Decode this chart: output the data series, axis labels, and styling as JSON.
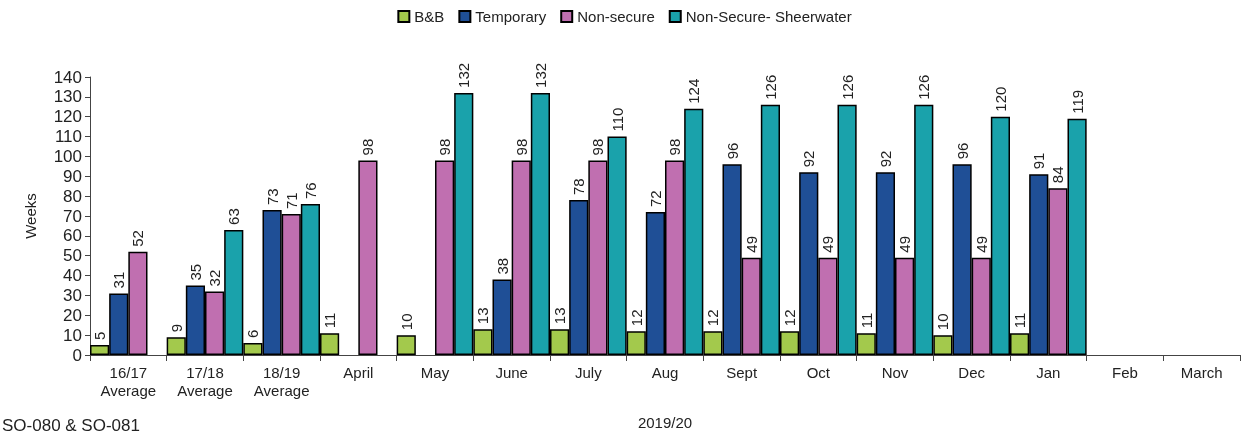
{
  "chart_data": {
    "type": "bar",
    "ylabel": "Weeks",
    "xlabel": "2019/20",
    "categories": [
      "16/17\nAverage",
      "17/18\nAverage",
      "18/19\nAverage",
      "April",
      "May",
      "June",
      "July",
      "Aug",
      "Sept",
      "Oct",
      "Nov",
      "Dec",
      "Jan",
      "Feb",
      "March"
    ],
    "series": [
      {
        "name": "B&B",
        "color": "#a3c94c",
        "values": [
          5,
          9,
          6,
          11,
          10,
          13,
          13,
          12,
          12,
          12,
          11,
          10,
          11,
          null,
          null
        ]
      },
      {
        "name": "Temporary",
        "color": "#1f4f96",
        "values": [
          31,
          35,
          73,
          null,
          null,
          38,
          78,
          72,
          96,
          92,
          92,
          96,
          91,
          null,
          null
        ]
      },
      {
        "name": "Non-secure",
        "color": "#c06fb0",
        "values": [
          52,
          32,
          71,
          98,
          98,
          98,
          98,
          98,
          49,
          49,
          49,
          49,
          84,
          null,
          null
        ]
      },
      {
        "name": "Non-Secure- Sheerwater",
        "color": "#1aa2ab",
        "values": [
          null,
          63,
          76,
          null,
          132,
          132,
          110,
          124,
          126,
          126,
          126,
          120,
          119,
          null,
          null
        ]
      }
    ],
    "ylim": [
      0,
      140
    ],
    "yticks": [
      0,
      10,
      20,
      30,
      40,
      50,
      60,
      70,
      80,
      90,
      100,
      110,
      120,
      130,
      140
    ],
    "data_labels": true,
    "grid": false,
    "legend": "top",
    "annotations": [
      "SO-080 & SO-081"
    ]
  }
}
